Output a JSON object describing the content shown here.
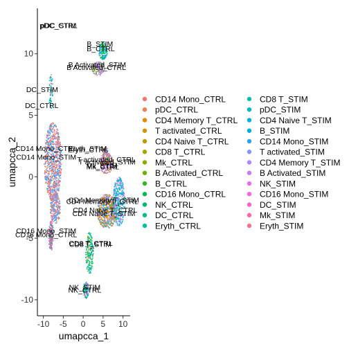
{
  "chart_data": {
    "type": "scatter",
    "xlabel": "umapcca_1",
    "ylabel": "umapcca_2",
    "xlim": [
      -11.5,
      11.8
    ],
    "ylim": [
      -11.3,
      13.7
    ],
    "x_ticks": [
      -10,
      -5,
      0,
      5,
      10
    ],
    "y_ticks": [
      -10,
      -5,
      0,
      5,
      10
    ],
    "x_tick_labels": [
      "-10",
      "-5",
      "0",
      "5",
      "10"
    ],
    "y_tick_labels": [
      "-10",
      "-5",
      "0",
      "5",
      "10"
    ],
    "grid": false,
    "legend_position": "right",
    "legend_columns": 2,
    "series": [
      {
        "name": "CD14 Mono_CTRL",
        "color": "#F8766D"
      },
      {
        "name": "pDC_CTRL",
        "color": "#EE7F4F"
      },
      {
        "name": "CD4 Memory T_CTRL",
        "color": "#E28A00"
      },
      {
        "name": "T activated_CTRL",
        "color": "#D39200"
      },
      {
        "name": "CD4 Naive T_CTRL",
        "color": "#C09B00"
      },
      {
        "name": "CD8 T_CTRL",
        "color": "#A9A400"
      },
      {
        "name": "Mk_CTRL",
        "color": "#8EAB00"
      },
      {
        "name": "B Activated_CTRL",
        "color": "#6BB100"
      },
      {
        "name": "B_CTRL",
        "color": "#31B425"
      },
      {
        "name": "CD16 Mono_CTRL",
        "color": "#00B84E"
      },
      {
        "name": "NK_CTRL",
        "color": "#00BA6C"
      },
      {
        "name": "DC_CTRL",
        "color": "#00BC87"
      },
      {
        "name": "Eryth_CTRL",
        "color": "#00BDA0"
      },
      {
        "name": "CD8 T_STIM",
        "color": "#00BBB6"
      },
      {
        "name": "pDC_STIM",
        "color": "#00B8CB"
      },
      {
        "name": "CD4 Naive T_STIM",
        "color": "#00B3DC"
      },
      {
        "name": "B_STIM",
        "color": "#00ACEC"
      },
      {
        "name": "CD14 Mono_STIM",
        "color": "#2E9FF6"
      },
      {
        "name": "T activated_STIM",
        "color": "#8C95F9"
      },
      {
        "name": "CD4 Memory T_STIM",
        "color": "#B286FF"
      },
      {
        "name": "B Activated_STIM",
        "color": "#CC7AF8"
      },
      {
        "name": "NK_STIM",
        "color": "#E66CF0"
      },
      {
        "name": "CD16 Mono_STIM",
        "color": "#F465DE"
      },
      {
        "name": "DC_STIM",
        "color": "#FD61D1"
      },
      {
        "name": "Mk_STIM",
        "color": "#FF65AE"
      },
      {
        "name": "Eryth_STIM",
        "color": "#FB6E94"
      }
    ],
    "point_regions": [
      {
        "series": [
          17,
          0,
          1,
          18
        ],
        "cx": -7.6,
        "cy": 1.2,
        "rx": 2.2,
        "ry": 3.2,
        "n": 900
      },
      {
        "series": [
          17,
          0,
          1,
          18
        ],
        "cx": -7.0,
        "cy": -2.6,
        "rx": 1.3,
        "ry": 1.2,
        "n": 220
      },
      {
        "series": [
          22,
          9,
          23
        ],
        "cx": -8.1,
        "cy": -4.8,
        "rx": 0.6,
        "ry": 1.2,
        "n": 160
      },
      {
        "series": [
          14,
          1,
          17,
          11
        ],
        "cx": -8.1,
        "cy": 7.0,
        "rx": 0.5,
        "ry": 1.5,
        "n": 60
      },
      {
        "series": [
          16,
          8,
          13
        ],
        "cx": 5.0,
        "cy": 10.2,
        "rx": 1.1,
        "ry": 0.7,
        "n": 150
      },
      {
        "series": [
          20,
          7,
          19
        ],
        "cx": 3.8,
        "cy": 8.8,
        "rx": 1.6,
        "ry": 0.6,
        "n": 140
      },
      {
        "series": [
          19,
          2,
          15,
          4,
          3,
          18
        ],
        "cx": 6.0,
        "cy": -2.8,
        "rx": 2.5,
        "ry": 1.4,
        "n": 650
      },
      {
        "series": [
          15,
          13,
          19
        ],
        "cx": 9.0,
        "cy": -2.0,
        "rx": 1.5,
        "ry": 2.0,
        "n": 350
      },
      {
        "series": [
          18,
          3,
          19,
          2,
          21
        ],
        "cx": 5.8,
        "cy": 1.1,
        "rx": 1.6,
        "ry": 0.9,
        "n": 220
      },
      {
        "series": [
          24,
          6,
          25,
          12,
          19
        ],
        "cx": 5.7,
        "cy": 1.8,
        "rx": 0.8,
        "ry": 0.6,
        "n": 70
      },
      {
        "series": [
          13,
          5,
          12,
          10
        ],
        "cx": 1.6,
        "cy": -6.2,
        "rx": 1.0,
        "ry": 1.7,
        "n": 200
      },
      {
        "series": [
          21,
          10,
          13
        ],
        "cx": 0.7,
        "cy": -9.2,
        "rx": 0.7,
        "ry": 0.7,
        "n": 120
      }
    ],
    "annotations": [
      {
        "text": "pDC_CTRL",
        "x": -6.2,
        "y": 12.1
      },
      {
        "text": "pDC_STIM",
        "x": -6.2,
        "y": 12.1
      },
      {
        "text": "B_STIM",
        "x": 4.2,
        "y": 10.6
      },
      {
        "text": "B_CTRL",
        "x": 4.4,
        "y": 10.2
      },
      {
        "text": "B Activated_STIM",
        "x": 3.5,
        "y": 8.9
      },
      {
        "text": "B Activated_CTRL",
        "x": 3.3,
        "y": 8.7
      },
      {
        "text": "DC_STIM",
        "x": -10.3,
        "y": 6.9
      },
      {
        "text": "DC_CTRL",
        "x": -10.4,
        "y": 5.6
      },
      {
        "text": "CD14 Mono_CTRL",
        "x": -9.3,
        "y": 2.1
      },
      {
        "text": "CD14 Mono_STIM",
        "x": -9.3,
        "y": 1.4
      },
      {
        "text": "Eryth_STIM",
        "x": 1.1,
        "y": 2.1
      },
      {
        "text": "Eryth_CTRL",
        "x": 1.2,
        "y": 2.0
      },
      {
        "text": "T activated_CTRL",
        "x": 5.8,
        "y": 1.2
      },
      {
        "text": "T activated_STIM",
        "x": 6.0,
        "y": 1.0
      },
      {
        "text": "Mk_STIM",
        "x": 4.7,
        "y": 0.7
      },
      {
        "text": "Mk_CTRL",
        "x": 4.9,
        "y": 0.6
      },
      {
        "text": "CD4 Memory T_STIM",
        "x": 5.2,
        "y": -2.1
      },
      {
        "text": "CD4 Memory T_CTRL",
        "x": 4.8,
        "y": -2.2
      },
      {
        "text": "CD4 Naive T_CTRL",
        "x": 5.5,
        "y": -2.9
      },
      {
        "text": "CD4 Naive T_STIM",
        "x": 5.2,
        "y": -3.2
      },
      {
        "text": "CD16 Mono_STIM",
        "x": -9.3,
        "y": -4.6
      },
      {
        "text": "CD16 Mono_CTRL",
        "x": -9.3,
        "y": -4.9
      },
      {
        "text": "CD8 T_CTRL",
        "x": 1.9,
        "y": -5.6
      },
      {
        "text": "CD8 T_STIM",
        "x": 1.8,
        "y": -5.7
      },
      {
        "text": "NK_STIM",
        "x": 0.4,
        "y": -9.2
      },
      {
        "text": "NK_CTRL",
        "x": 0.4,
        "y": -9.4
      }
    ]
  }
}
